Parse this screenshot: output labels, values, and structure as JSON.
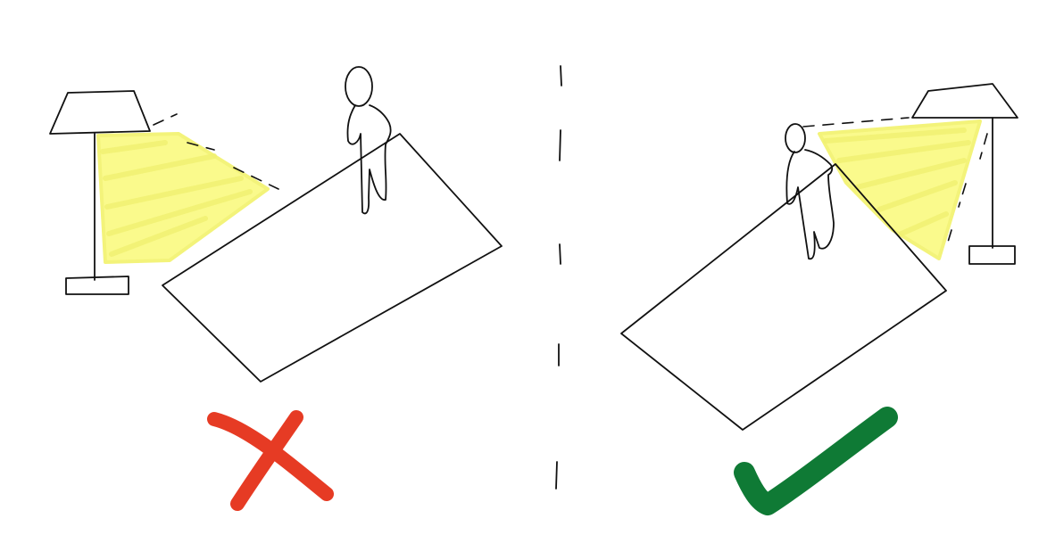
{
  "colors": {
    "background": "#ffffff",
    "ink": "#111111",
    "light": "#fafa8c",
    "wrong": "#e63b24",
    "right": "#0f7a35"
  },
  "panels": [
    {
      "name": "left-scene",
      "verdict": "wrong",
      "verdict_icon": "cross-icon"
    },
    {
      "name": "right-scene",
      "verdict": "correct",
      "verdict_icon": "checkmark-icon"
    }
  ]
}
